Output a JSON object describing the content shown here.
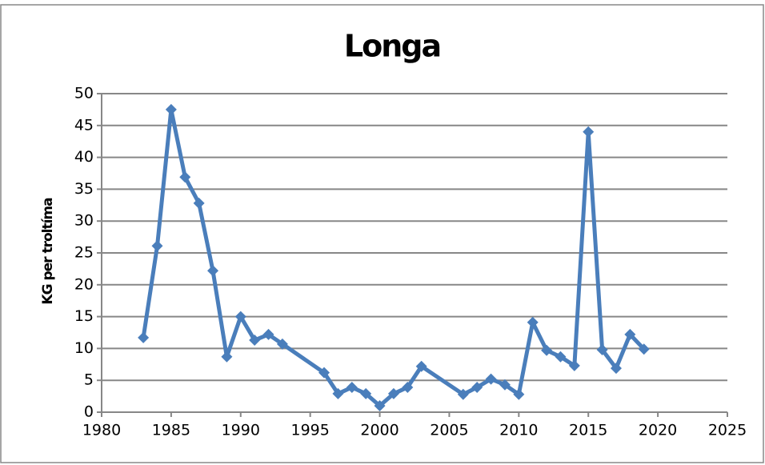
{
  "chart_data": {
    "type": "line",
    "title": "Longa",
    "y_label": "KG per troltíma",
    "x": [
      1983,
      1984,
      1985,
      1986,
      1987,
      1988,
      1989,
      1990,
      1991,
      1992,
      1993,
      1996,
      1997,
      1998,
      1999,
      2000,
      2001,
      2002,
      2003,
      2006,
      2007,
      2008,
      2009,
      2010,
      2011,
      2012,
      2013,
      2014,
      2015,
      2016,
      2017,
      2018,
      2019
    ],
    "series": [
      {
        "name": "Longa",
        "color": "#4a7ebb",
        "values": [
          11.7,
          26.1,
          47.5,
          36.9,
          32.8,
          22.2,
          8.7,
          15,
          11.3,
          12.2,
          10.7,
          6.2,
          2.9,
          3.9,
          2.9,
          1.0,
          2.9,
          3.9,
          7.2,
          2.8,
          3.9,
          5.2,
          4.3,
          2.8,
          14.1,
          9.7,
          8.7,
          7.3,
          44,
          9.8,
          6.9,
          12.2,
          9.9
        ]
      }
    ],
    "xlim": [
      1980,
      2025
    ],
    "xticks": [
      1980,
      1985,
      1990,
      1995,
      2000,
      2005,
      2010,
      2015,
      2020,
      2025
    ],
    "ylim": [
      0,
      50
    ],
    "yticks": [
      0,
      5,
      10,
      15,
      20,
      25,
      30,
      35,
      40,
      45,
      50
    ],
    "grid": true
  }
}
